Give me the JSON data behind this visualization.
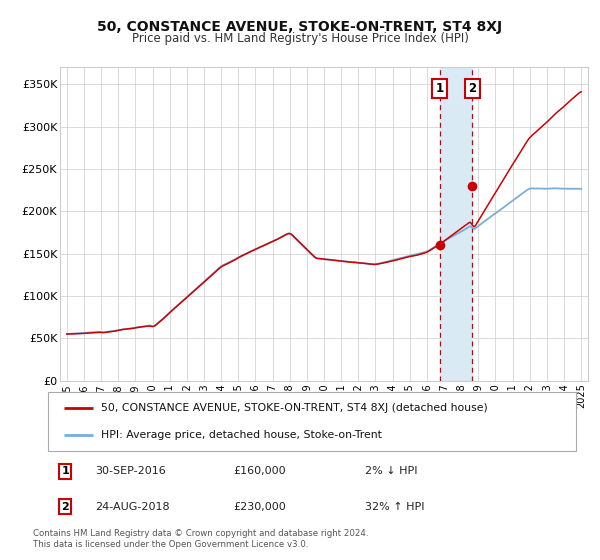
{
  "title": "50, CONSTANCE AVENUE, STOKE-ON-TRENT, ST4 8XJ",
  "subtitle": "Price paid vs. HM Land Registry's House Price Index (HPI)",
  "legend_line1": "50, CONSTANCE AVENUE, STOKE-ON-TRENT, ST4 8XJ (detached house)",
  "legend_line2": "HPI: Average price, detached house, Stoke-on-Trent",
  "annotation1": {
    "label": "1",
    "date": "30-SEP-2016",
    "price": "£160,000",
    "pct": "2% ↓ HPI"
  },
  "annotation2": {
    "label": "2",
    "date": "24-AUG-2018",
    "price": "£230,000",
    "pct": "32% ↑ HPI"
  },
  "footer": "Contains HM Land Registry data © Crown copyright and database right 2024.\nThis data is licensed under the Open Government Licence v3.0.",
  "hpi_color": "#7aaddb",
  "price_color": "#cc0000",
  "annotation_box_color": "#cc0000",
  "shaded_region_color": "#daeaf5",
  "ylim": [
    0,
    370000
  ],
  "yticks": [
    0,
    50000,
    100000,
    150000,
    200000,
    250000,
    300000,
    350000
  ],
  "ytick_labels": [
    "£0",
    "£50K",
    "£100K",
    "£150K",
    "£200K",
    "£250K",
    "£300K",
    "£350K"
  ],
  "sale1_year": 2016.75,
  "sale2_year": 2018.65,
  "sale1_price": 160000,
  "sale2_price": 230000,
  "background_color": "#ffffff",
  "grid_color": "#cccccc",
  "xlim_left": 1994.6,
  "xlim_right": 2025.4
}
